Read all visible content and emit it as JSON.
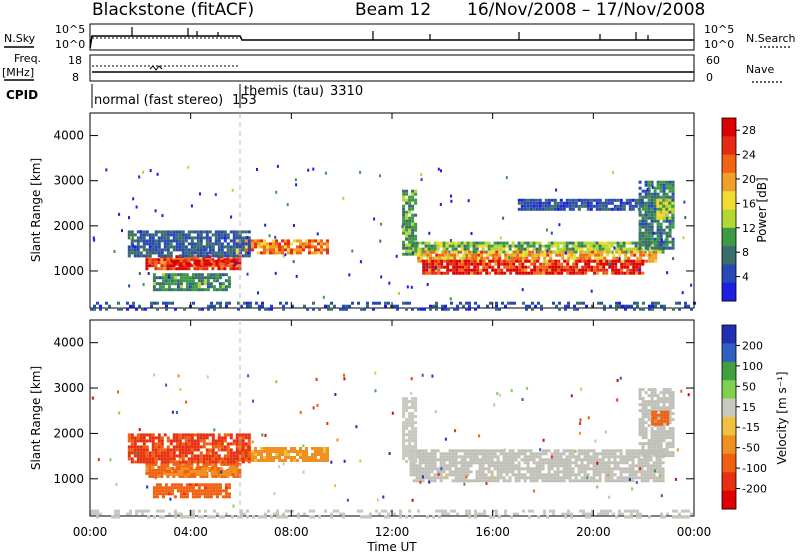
{
  "header": {
    "station": "Blackstone (fitACF)",
    "beam_label": "Beam 12",
    "date_range": "16/Nov/2008 – 17/Nov/2008"
  },
  "summary_panels": {
    "nsky_label": "N.Sky",
    "nsearch_label": "N.Search",
    "freq_label": "Freq.",
    "freq_unit": "[MHz]",
    "nave_label": "Nave",
    "cpid_label": "CPID",
    "counts_ticks": [
      "10^5",
      "10^0"
    ],
    "freq_ticks": [
      "18",
      "8"
    ],
    "nave_ticks": [
      "60",
      "0"
    ],
    "modes": [
      {
        "name": "normal (fast stereo)",
        "cpid": "153",
        "start_hour": 0,
        "end_hour": 6
      },
      {
        "name": "themis (tau)",
        "cpid": "3310",
        "start_hour": 6,
        "end_hour": 24
      }
    ]
  },
  "colors": {
    "power_scale": [
      "#1e1ee0",
      "#2848b4",
      "#3a6e6a",
      "#3c9a46",
      "#b4d832",
      "#f0dc32",
      "#f0a028",
      "#f06414",
      "#e62a14",
      "#dc0000"
    ],
    "velocity_scale": [
      "#2030b0",
      "#3060c0",
      "#40a040",
      "#80d050",
      "#c8c8c0",
      "#f0c040",
      "#f09020",
      "#f06010",
      "#e83010",
      "#e00000"
    ],
    "ground_scatter": "#c0c0b8"
  },
  "chart_data": [
    {
      "type": "heatmap",
      "name": "power",
      "xlabel": "Time UT",
      "ylabel": "Slant Range [km]",
      "x_ticks": [
        "00:00",
        "04:00",
        "08:00",
        "12:00",
        "16:00",
        "20:00",
        "00:00"
      ],
      "x_range_hours": [
        0,
        24
      ],
      "y_ticks": [
        1000,
        2000,
        3000,
        4000
      ],
      "ylim": [
        180,
        4500
      ],
      "colorbar": {
        "label": "Power [dB]",
        "ticks": [
          4,
          8,
          12,
          16,
          20,
          24,
          28
        ],
        "range": [
          0,
          30
        ]
      },
      "regions": [
        {
          "t0": 2.2,
          "t1": 5.9,
          "r0": 1050,
          "r1": 1350,
          "value": 26
        },
        {
          "t0": 3.2,
          "t1": 5.8,
          "r0": 1120,
          "r1": 1250,
          "value": 29
        },
        {
          "t0": 5.8,
          "t1": 9.4,
          "r0": 1380,
          "r1": 1700,
          "value": 21
        },
        {
          "t0": 1.5,
          "t1": 6.3,
          "r0": 1350,
          "r1": 1900,
          "value": 6
        },
        {
          "t0": 2.5,
          "t1": 5.5,
          "r0": 600,
          "r1": 950,
          "value": 9
        },
        {
          "t0": 12.7,
          "t1": 22.8,
          "r0": 1450,
          "r1": 1650,
          "value": 12
        },
        {
          "t0": 13.0,
          "t1": 22.5,
          "r0": 1250,
          "r1": 1450,
          "value": 19
        },
        {
          "t0": 13.2,
          "t1": 22.0,
          "r0": 950,
          "r1": 1250,
          "value": 27
        },
        {
          "t0": 12.4,
          "t1": 12.9,
          "r0": 1400,
          "r1": 2800,
          "value": 10
        },
        {
          "t0": 21.8,
          "t1": 23.2,
          "r0": 1500,
          "r1": 3000,
          "value": 8
        },
        {
          "t0": 22.5,
          "t1": 23.1,
          "r0": 2200,
          "r1": 2600,
          "value": 14
        },
        {
          "t0": 17.0,
          "t1": 22.0,
          "r0": 2350,
          "r1": 2600,
          "value": 5
        },
        {
          "t0": 0.0,
          "t1": 24.0,
          "r0": 180,
          "r1": 320,
          "value": 5
        }
      ]
    },
    {
      "type": "heatmap",
      "name": "velocity",
      "xlabel": "Time UT",
      "ylabel": "Slant Range [km]",
      "x_ticks": [
        "00:00",
        "04:00",
        "08:00",
        "12:00",
        "16:00",
        "20:00",
        "00:00"
      ],
      "x_range_hours": [
        0,
        24
      ],
      "y_ticks": [
        1000,
        2000,
        3000,
        4000
      ],
      "ylim": [
        180,
        4500
      ],
      "colorbar": {
        "label": "Velocity [m s⁻¹]",
        "ticks": [
          200,
          100,
          50,
          15,
          -15,
          -50,
          -100,
          -200
        ],
        "range": [
          -250,
          250
        ]
      },
      "regions": [
        {
          "t0": 2.2,
          "t1": 5.9,
          "r0": 1050,
          "r1": 1350,
          "value": -120
        },
        {
          "t0": 3.0,
          "t1": 5.8,
          "r0": 1120,
          "r1": 1260,
          "value": -90
        },
        {
          "t0": 5.8,
          "t1": 9.4,
          "r0": 1380,
          "r1": 1700,
          "value": -60
        },
        {
          "t0": 1.5,
          "t1": 6.3,
          "r0": 1350,
          "r1": 2000,
          "value": -160
        },
        {
          "t0": 2.5,
          "t1": 5.5,
          "r0": 600,
          "r1": 900,
          "value": -130
        },
        {
          "t0": 12.7,
          "t1": 22.8,
          "r0": 950,
          "r1": 1650,
          "value": 0
        },
        {
          "t0": 12.4,
          "t1": 12.9,
          "r0": 1400,
          "r1": 2800,
          "value": 30
        },
        {
          "t0": 21.8,
          "t1": 23.2,
          "r0": 1500,
          "r1": 3000,
          "value": 0
        },
        {
          "t0": 22.3,
          "t1": 23.0,
          "r0": 2200,
          "r1": 2500,
          "value": -120
        },
        {
          "t0": 0.0,
          "t1": 24.0,
          "r0": 180,
          "r1": 320,
          "value": 40
        }
      ]
    }
  ]
}
